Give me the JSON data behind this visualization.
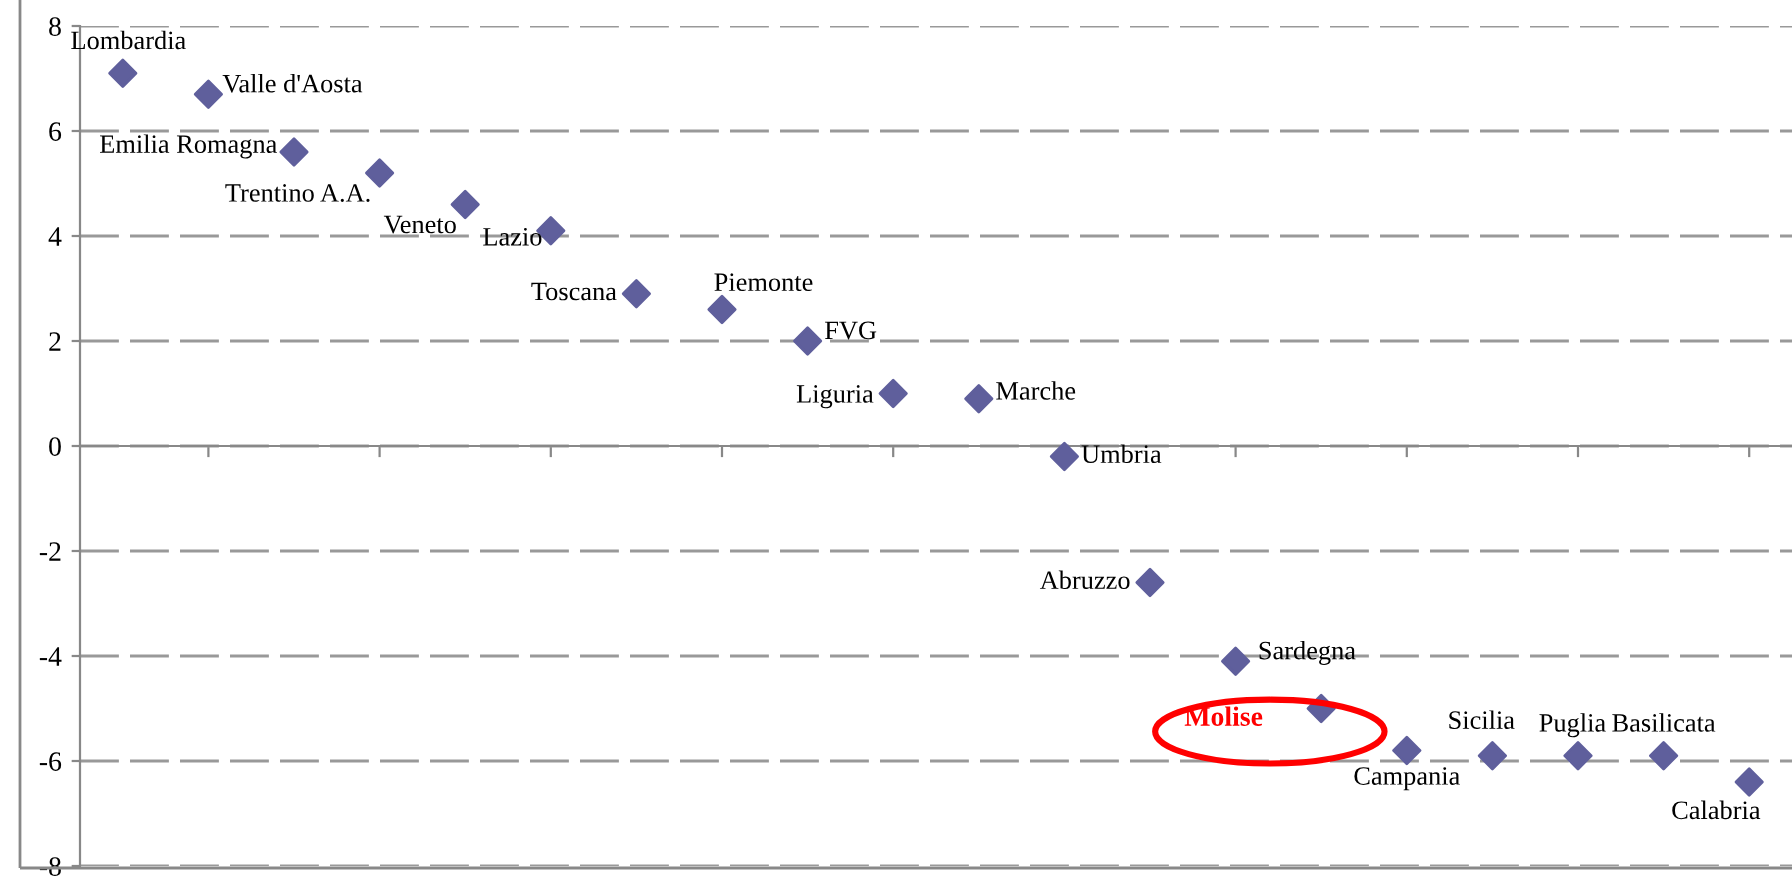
{
  "chart_data": {
    "type": "scatter",
    "categories": [
      null,
      null,
      null,
      null,
      null,
      null,
      null,
      null,
      null,
      null,
      null,
      null,
      null,
      null,
      null,
      null,
      null,
      null,
      null,
      null
    ],
    "series": [
      {
        "color": "#5f5f9c",
        "values": [
          7.1,
          6.7,
          5.6,
          5.2,
          4.6,
          4.1,
          2.9,
          2.6,
          2.0,
          1.0,
          0.9,
          -0.2,
          -2.6,
          -4.1,
          -5.0,
          -5.8,
          -5.9,
          -5.9,
          -5.9,
          -6.4
        ],
        "value_labels": [
          "Lombardia",
          "Valle d'Aosta",
          "Emilia Romagna",
          "Trentino A.A.",
          "Veneto",
          "Lazio",
          "Toscana",
          "Piemonte",
          "FVG",
          "Liguria",
          "Marche",
          "Umbria",
          "Abruzzo",
          "Sardegna",
          null,
          "Campania",
          "Sicilia",
          "Puglia",
          "Basilicata",
          "Calabria"
        ]
      }
    ],
    "annotations": [
      "Molise"
    ],
    "ylim": [
      -8,
      8
    ],
    "yticks": [
      -8,
      -6,
      -4,
      -2,
      0,
      2,
      4,
      6,
      8
    ],
    "grid": "y",
    "marker": "diamond",
    "tick_labels": "y",
    "legend": false
  }
}
